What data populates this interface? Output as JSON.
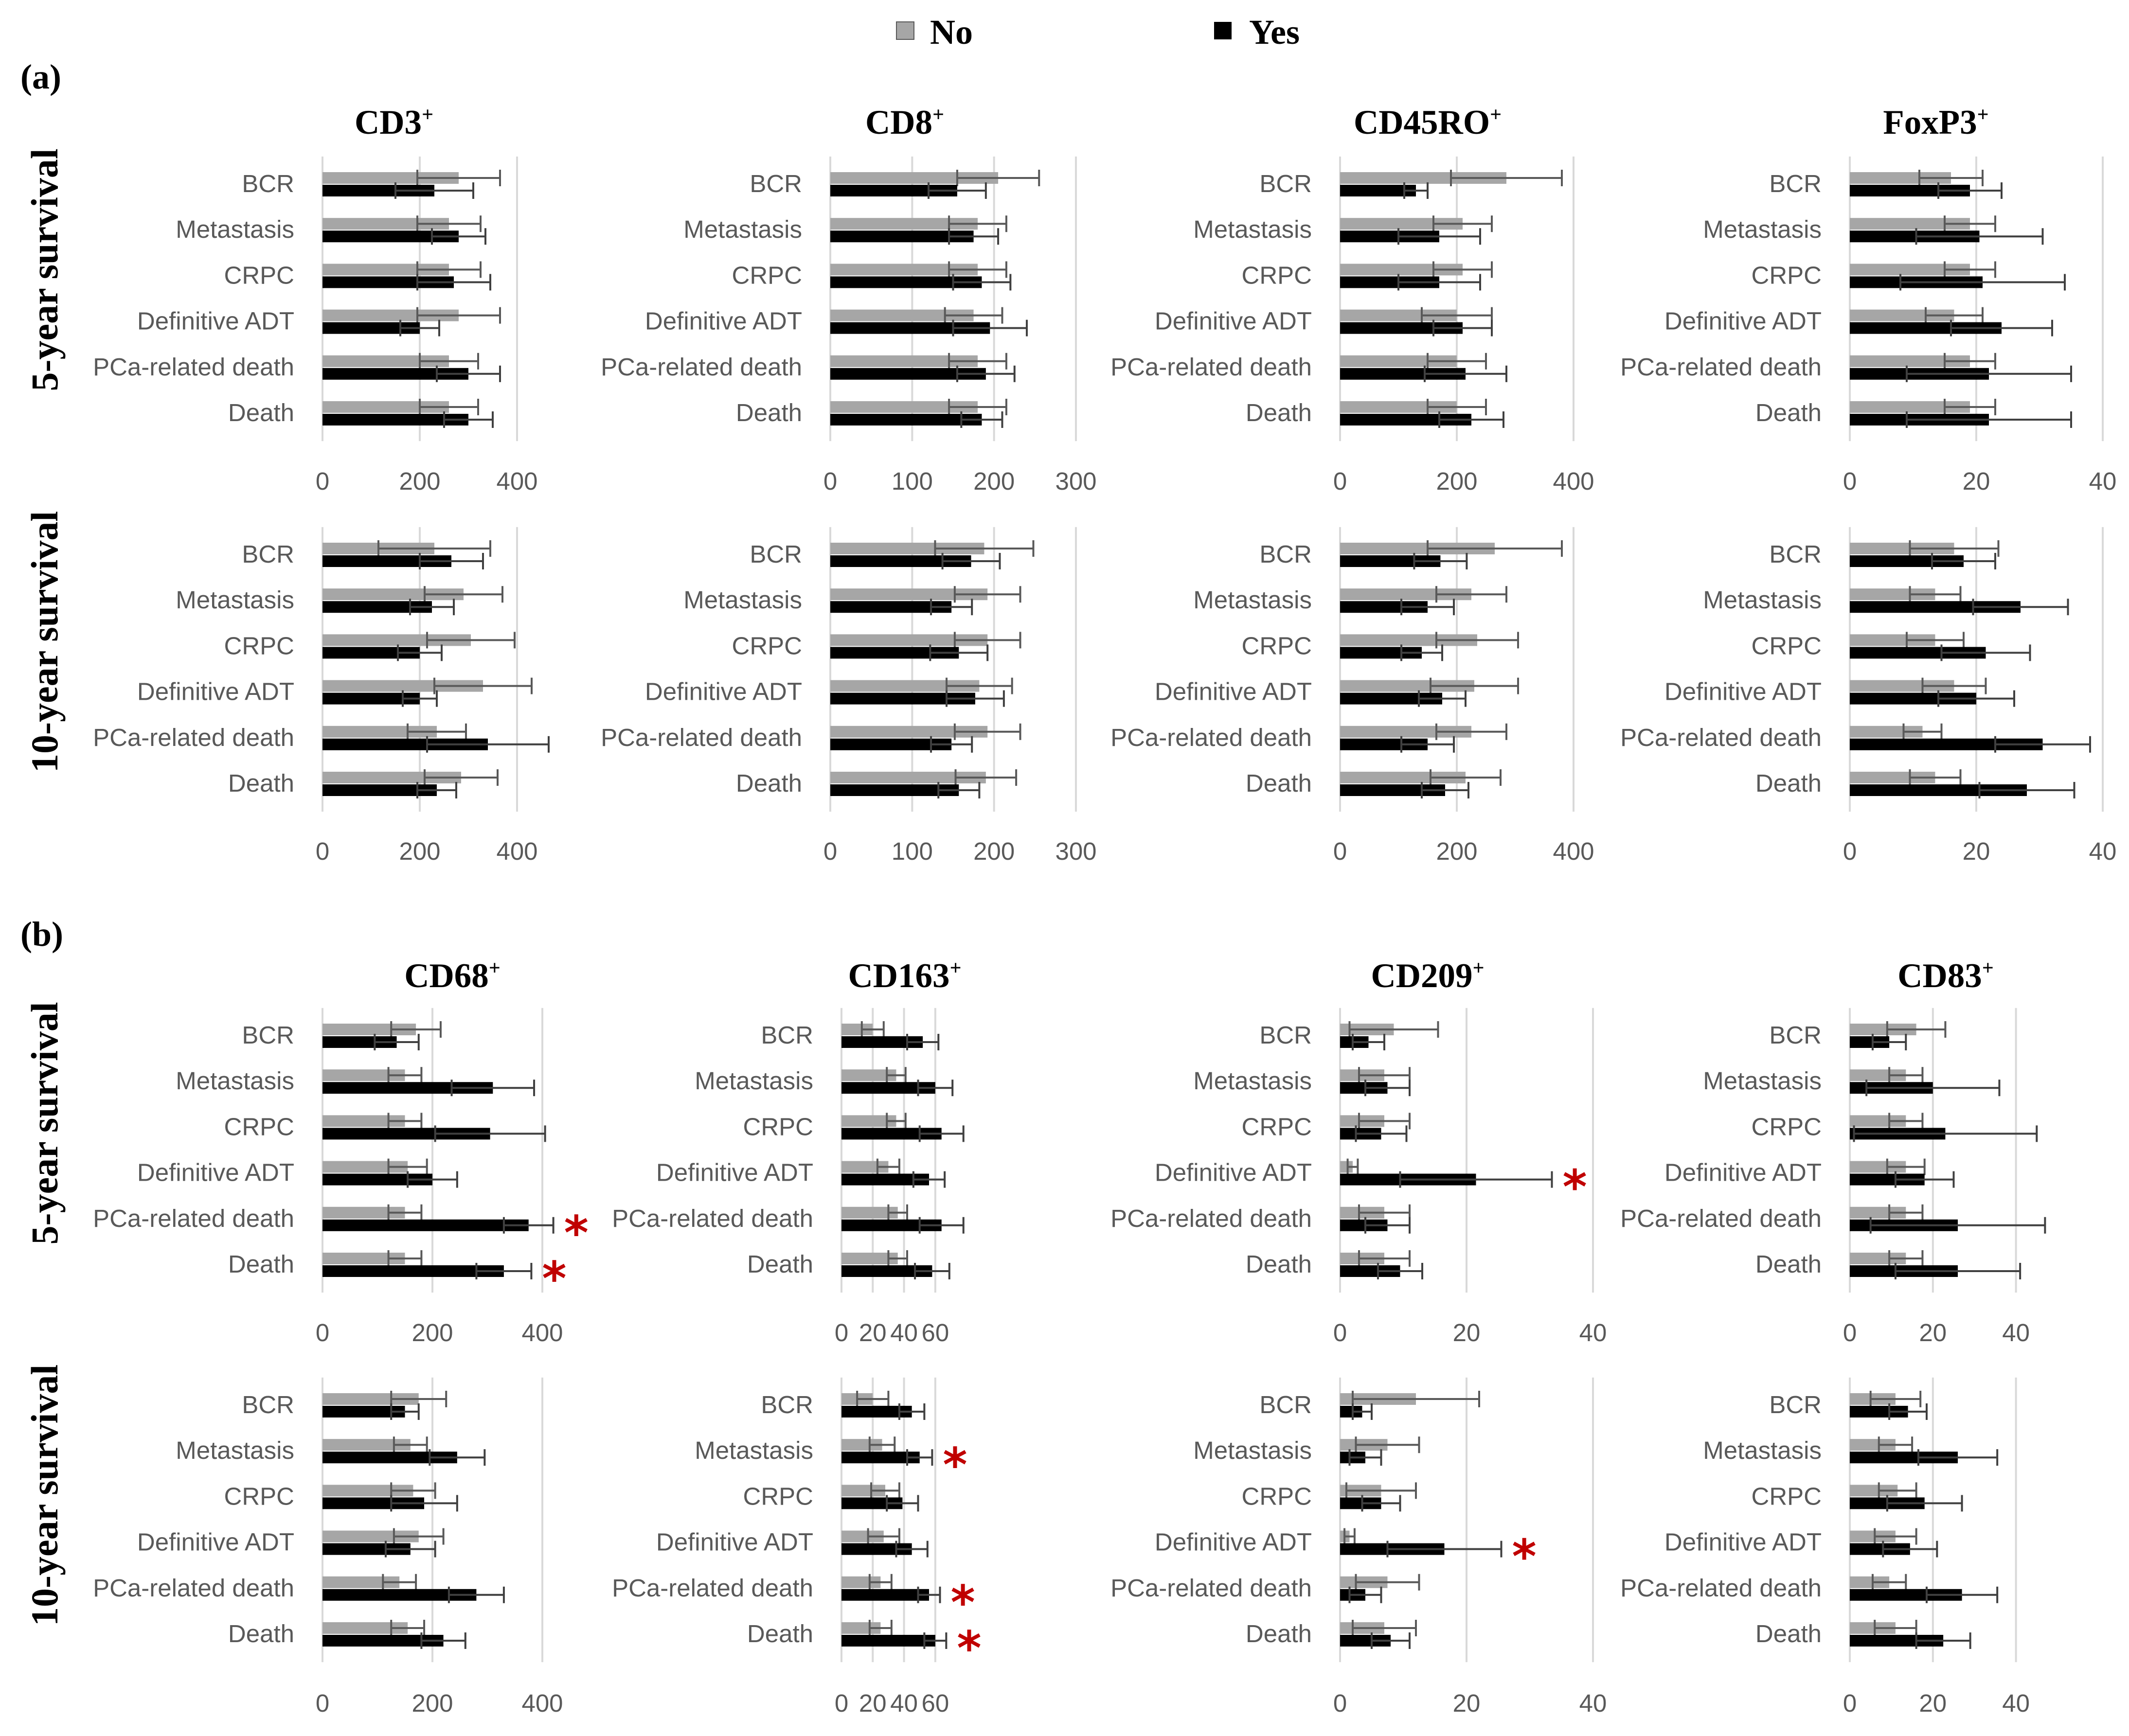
{
  "legend": {
    "no_label": "No",
    "yes_label": "Yes"
  },
  "panels": [
    {
      "id": "a",
      "label": "(a)"
    },
    {
      "id": "b",
      "label": "(b)"
    }
  ],
  "row_labels": [
    "5-year survival",
    "10-year survival",
    "5-year survival",
    "10-year survival"
  ],
  "colors": {
    "no": "#a6a6a6",
    "yes": "#000000",
    "grid": "#d9d9d9",
    "star": "#c00000",
    "text": "#595959"
  },
  "chart_data": [
    {
      "type": "bar",
      "panel": "a",
      "title": "CD3",
      "sup": "+",
      "row": "5-year survival",
      "categories": [
        "BCR",
        "Metastasis",
        "CRPC",
        "Definitive ADT",
        "PCa-related death",
        "Death"
      ],
      "xlim": [
        0,
        400
      ],
      "xticks": [
        0,
        200,
        400
      ],
      "series": [
        {
          "name": "No",
          "values": [
            280,
            260,
            260,
            280,
            260,
            260
          ],
          "errors": [
            85,
            65,
            65,
            85,
            60,
            60
          ]
        },
        {
          "name": "Yes",
          "values": [
            230,
            280,
            270,
            200,
            300,
            300
          ],
          "errors": [
            80,
            55,
            75,
            40,
            65,
            50
          ]
        }
      ],
      "significant": []
    },
    {
      "type": "bar",
      "panel": "a",
      "title": "CD8",
      "sup": "+",
      "row": "5-year survival",
      "categories": [
        "BCR",
        "Metastasis",
        "CRPC",
        "Definitive ADT",
        "PCa-related death",
        "Death"
      ],
      "xlim": [
        0,
        300
      ],
      "xticks": [
        0,
        100,
        200,
        300
      ],
      "series": [
        {
          "name": "No",
          "values": [
            205,
            180,
            180,
            175,
            180,
            180
          ],
          "errors": [
            50,
            35,
            35,
            35,
            35,
            35
          ]
        },
        {
          "name": "Yes",
          "values": [
            155,
            175,
            185,
            195,
            190,
            185
          ],
          "errors": [
            35,
            30,
            35,
            45,
            35,
            25
          ]
        }
      ],
      "significant": []
    },
    {
      "type": "bar",
      "panel": "a",
      "title": "CD45RO",
      "sup": "+",
      "row": "5-year survival",
      "categories": [
        "BCR",
        "Metastasis",
        "CRPC",
        "Definitive ADT",
        "PCa-related death",
        "Death"
      ],
      "xlim": [
        0,
        400
      ],
      "xticks": [
        0,
        200,
        400
      ],
      "series": [
        {
          "name": "No",
          "values": [
            285,
            210,
            210,
            200,
            200,
            200
          ],
          "errors": [
            95,
            50,
            50,
            60,
            50,
            50
          ]
        },
        {
          "name": "Yes",
          "values": [
            130,
            170,
            170,
            210,
            215,
            225
          ],
          "errors": [
            20,
            70,
            70,
            50,
            70,
            55
          ]
        }
      ],
      "significant": []
    },
    {
      "type": "bar",
      "panel": "a",
      "title": "FoxP3",
      "sup": "+",
      "row": "5-year survival",
      "categories": [
        "BCR",
        "Metastasis",
        "CRPC",
        "Definitive ADT",
        "PCa-related death",
        "Death"
      ],
      "xlim": [
        0,
        40
      ],
      "xticks": [
        0,
        20,
        40
      ],
      "series": [
        {
          "name": "No",
          "values": [
            16,
            19,
            19,
            16.5,
            19,
            19
          ],
          "errors": [
            5,
            4,
            4,
            4.5,
            4,
            4
          ]
        },
        {
          "name": "Yes",
          "values": [
            19,
            20.5,
            21,
            24,
            22,
            22
          ],
          "errors": [
            5,
            10,
            13,
            8,
            13,
            13
          ]
        }
      ],
      "significant": []
    },
    {
      "type": "bar",
      "panel": "a",
      "title": "CD3",
      "sup": "+",
      "row": "10-year survival",
      "categories": [
        "BCR",
        "Metastasis",
        "CRPC",
        "Definitive ADT",
        "PCa-related death",
        "Death"
      ],
      "xlim": [
        0,
        400
      ],
      "xticks": [
        0,
        200,
        400
      ],
      "series": [
        {
          "name": "No",
          "values": [
            230,
            290,
            305,
            330,
            235,
            285
          ],
          "errors": [
            115,
            80,
            90,
            100,
            60,
            75
          ]
        },
        {
          "name": "Yes",
          "values": [
            265,
            225,
            200,
            200,
            340,
            235
          ],
          "errors": [
            65,
            45,
            45,
            35,
            125,
            40
          ]
        }
      ],
      "significant": []
    },
    {
      "type": "bar",
      "panel": "a",
      "title": "CD8",
      "sup": "+",
      "row": "10-year survival",
      "categories": [
        "BCR",
        "Metastasis",
        "CRPC",
        "Definitive ADT",
        "PCa-related death",
        "Death"
      ],
      "xlim": [
        0,
        300
      ],
      "xticks": [
        0,
        100,
        200,
        300
      ],
      "series": [
        {
          "name": "No",
          "values": [
            188,
            192,
            192,
            182,
            192,
            190
          ],
          "errors": [
            60,
            40,
            40,
            40,
            40,
            37
          ]
        },
        {
          "name": "Yes",
          "values": [
            172,
            148,
            157,
            177,
            148,
            157
          ],
          "errors": [
            35,
            25,
            35,
            35,
            25,
            25
          ]
        }
      ],
      "significant": []
    },
    {
      "type": "bar",
      "panel": "a",
      "title": "CD45RO",
      "sup": "+",
      "row": "10-year survival",
      "categories": [
        "BCR",
        "Metastasis",
        "CRPC",
        "Definitive ADT",
        "PCa-related death",
        "Death"
      ],
      "xlim": [
        0,
        400
      ],
      "xticks": [
        0,
        200,
        400
      ],
      "series": [
        {
          "name": "No",
          "values": [
            265,
            225,
            235,
            230,
            225,
            215
          ],
          "errors": [
            115,
            60,
            70,
            75,
            60,
            60
          ]
        },
        {
          "name": "Yes",
          "values": [
            172,
            150,
            140,
            175,
            150,
            180
          ],
          "errors": [
            45,
            45,
            35,
            40,
            45,
            40
          ]
        }
      ],
      "significant": []
    },
    {
      "type": "bar",
      "panel": "a",
      "title": "FoxP3",
      "sup": "+",
      "row": "10-year survival",
      "categories": [
        "BCR",
        "Metastasis",
        "CRPC",
        "Definitive ADT",
        "PCa-related death",
        "Death"
      ],
      "xlim": [
        0,
        40
      ],
      "xticks": [
        0,
        20,
        40
      ],
      "series": [
        {
          "name": "No",
          "values": [
            16.5,
            13.5,
            13.5,
            16.5,
            11.5,
            13.5
          ],
          "errors": [
            7,
            4,
            4.5,
            5,
            3,
            4
          ]
        },
        {
          "name": "Yes",
          "values": [
            18,
            27,
            21.5,
            20,
            30.5,
            28
          ],
          "errors": [
            5,
            7.5,
            7,
            6,
            7.5,
            7.5
          ]
        }
      ],
      "significant": []
    },
    {
      "type": "bar",
      "panel": "b",
      "title": "CD68",
      "sup": "+",
      "row": "5-year survival",
      "categories": [
        "BCR",
        "Metastasis",
        "CRPC",
        "Definitive ADT",
        "PCa-related death",
        "Death"
      ],
      "xlim": [
        0,
        400
      ],
      "xticks": [
        0,
        200,
        400
      ],
      "series": [
        {
          "name": "No",
          "values": [
            170,
            150,
            150,
            155,
            150,
            150
          ],
          "errors": [
            45,
            30,
            30,
            35,
            30,
            30
          ]
        },
        {
          "name": "Yes",
          "values": [
            135,
            310,
            305,
            200,
            375,
            330
          ],
          "errors": [
            40,
            75,
            100,
            45,
            45,
            50
          ]
        }
      ],
      "significant": [
        "PCa-related death",
        "Death"
      ]
    },
    {
      "type": "bar",
      "panel": "b",
      "title": "CD163",
      "sup": "+",
      "row": "5-year survival",
      "categories": [
        "BCR",
        "Metastasis",
        "CRPC",
        "Definitive ADT",
        "PCa-related death",
        "Death"
      ],
      "xlim": [
        0,
        70
      ],
      "xticks": [
        0,
        20,
        40,
        60
      ],
      "series": [
        {
          "name": "No",
          "values": [
            20,
            35,
            35,
            30,
            36,
            36
          ],
          "errors": [
            7,
            6,
            6,
            7,
            6,
            6
          ]
        },
        {
          "name": "Yes",
          "values": [
            52,
            60,
            64,
            56,
            64,
            58
          ],
          "errors": [
            10,
            11,
            14,
            10,
            14,
            11
          ]
        }
      ],
      "significant": []
    },
    {
      "type": "bar",
      "panel": "b",
      "title": "CD209",
      "sup": "+",
      "row": "5-year survival",
      "categories": [
        "BCR",
        "Metastasis",
        "CRPC",
        "Definitive ADT",
        "PCa-related death",
        "Death"
      ],
      "xlim": [
        0,
        40
      ],
      "xticks": [
        0,
        20,
        40
      ],
      "series": [
        {
          "name": "No",
          "values": [
            8.5,
            7,
            7,
            2,
            7,
            7
          ],
          "errors": [
            7,
            4,
            4,
            0.8,
            4,
            4
          ]
        },
        {
          "name": "Yes",
          "values": [
            4.5,
            7.5,
            6.5,
            21.5,
            7.5,
            9.5
          ],
          "errors": [
            2.5,
            3.5,
            4,
            12,
            3.5,
            3.5
          ]
        }
      ],
      "significant": [
        "Definitive ADT"
      ]
    },
    {
      "type": "bar",
      "panel": "b",
      "title": "CD83",
      "sup": "+",
      "row": "5-year survival",
      "categories": [
        "BCR",
        "Metastasis",
        "CRPC",
        "Definitive ADT",
        "PCa-related death",
        "Death"
      ],
      "xlim": [
        0,
        50
      ],
      "xticks": [
        0,
        20,
        40
      ],
      "series": [
        {
          "name": "No",
          "values": [
            16,
            13.5,
            13.5,
            13.5,
            13.5,
            13.5
          ],
          "errors": [
            7,
            4,
            4,
            4.5,
            4,
            4
          ]
        },
        {
          "name": "Yes",
          "values": [
            9.5,
            20,
            23,
            18,
            26,
            26
          ],
          "errors": [
            4,
            16,
            22,
            7,
            21,
            15
          ]
        }
      ],
      "significant": []
    },
    {
      "type": "bar",
      "panel": "b",
      "title": "CD68",
      "sup": "+",
      "row": "10-year survival",
      "categories": [
        "BCR",
        "Metastasis",
        "CRPC",
        "Definitive ADT",
        "PCa-related death",
        "Death"
      ],
      "xlim": [
        0,
        400
      ],
      "xticks": [
        0,
        200,
        400
      ],
      "series": [
        {
          "name": "No",
          "values": [
            175,
            160,
            165,
            175,
            140,
            155
          ],
          "errors": [
            50,
            30,
            40,
            45,
            30,
            30
          ]
        },
        {
          "name": "Yes",
          "values": [
            150,
            245,
            185,
            160,
            280,
            220
          ],
          "errors": [
            25,
            50,
            60,
            45,
            50,
            40
          ]
        }
      ],
      "significant": []
    },
    {
      "type": "bar",
      "panel": "b",
      "title": "CD163",
      "sup": "+",
      "row": "10-year survival",
      "categories": [
        "BCR",
        "Metastasis",
        "CRPC",
        "Definitive ADT",
        "PCa-related death",
        "Death"
      ],
      "xlim": [
        0,
        70
      ],
      "xticks": [
        0,
        20,
        40,
        60
      ],
      "series": [
        {
          "name": "No",
          "values": [
            20,
            26,
            28,
            27,
            25,
            25
          ],
          "errors": [
            10,
            8,
            9,
            10,
            7,
            7
          ]
        },
        {
          "name": "Yes",
          "values": [
            45,
            50,
            39,
            45,
            56,
            60
          ],
          "errors": [
            8,
            8,
            10,
            10,
            7,
            7
          ]
        }
      ],
      "significant": [
        "Metastasis",
        "PCa-related death",
        "Death"
      ]
    },
    {
      "type": "bar",
      "panel": "b",
      "title": "CD209",
      "sup": "+",
      "row": "10-year survival",
      "categories": [
        "BCR",
        "Metastasis",
        "CRPC",
        "Definitive ADT",
        "PCa-related death",
        "Death"
      ],
      "xlim": [
        0,
        40
      ],
      "xticks": [
        0,
        20,
        40
      ],
      "series": [
        {
          "name": "No",
          "values": [
            12,
            7.5,
            6.5,
            1.5,
            7.5,
            7
          ],
          "errors": [
            10,
            5,
            5.5,
            0.8,
            5,
            5
          ]
        },
        {
          "name": "Yes",
          "values": [
            3.5,
            4,
            6.5,
            16.5,
            4,
            8
          ],
          "errors": [
            1.5,
            2.5,
            3,
            9,
            2.5,
            3
          ]
        }
      ],
      "significant": [
        "Definitive ADT"
      ]
    },
    {
      "type": "bar",
      "panel": "b",
      "title": "CD83",
      "sup": "+",
      "row": "10-year survival",
      "categories": [
        "BCR",
        "Metastasis",
        "CRPC",
        "Definitive ADT",
        "PCa-related death",
        "Death"
      ],
      "xlim": [
        0,
        50
      ],
      "xticks": [
        0,
        20,
        40
      ],
      "series": [
        {
          "name": "No",
          "values": [
            11,
            11,
            11.5,
            11,
            9.5,
            11
          ],
          "errors": [
            6,
            4,
            4.5,
            5,
            4,
            5
          ]
        },
        {
          "name": "Yes",
          "values": [
            14,
            26,
            18,
            14.5,
            27,
            22.5
          ],
          "errors": [
            4.5,
            9.5,
            9,
            6.5,
            8.5,
            6.5
          ]
        }
      ],
      "significant": []
    }
  ]
}
